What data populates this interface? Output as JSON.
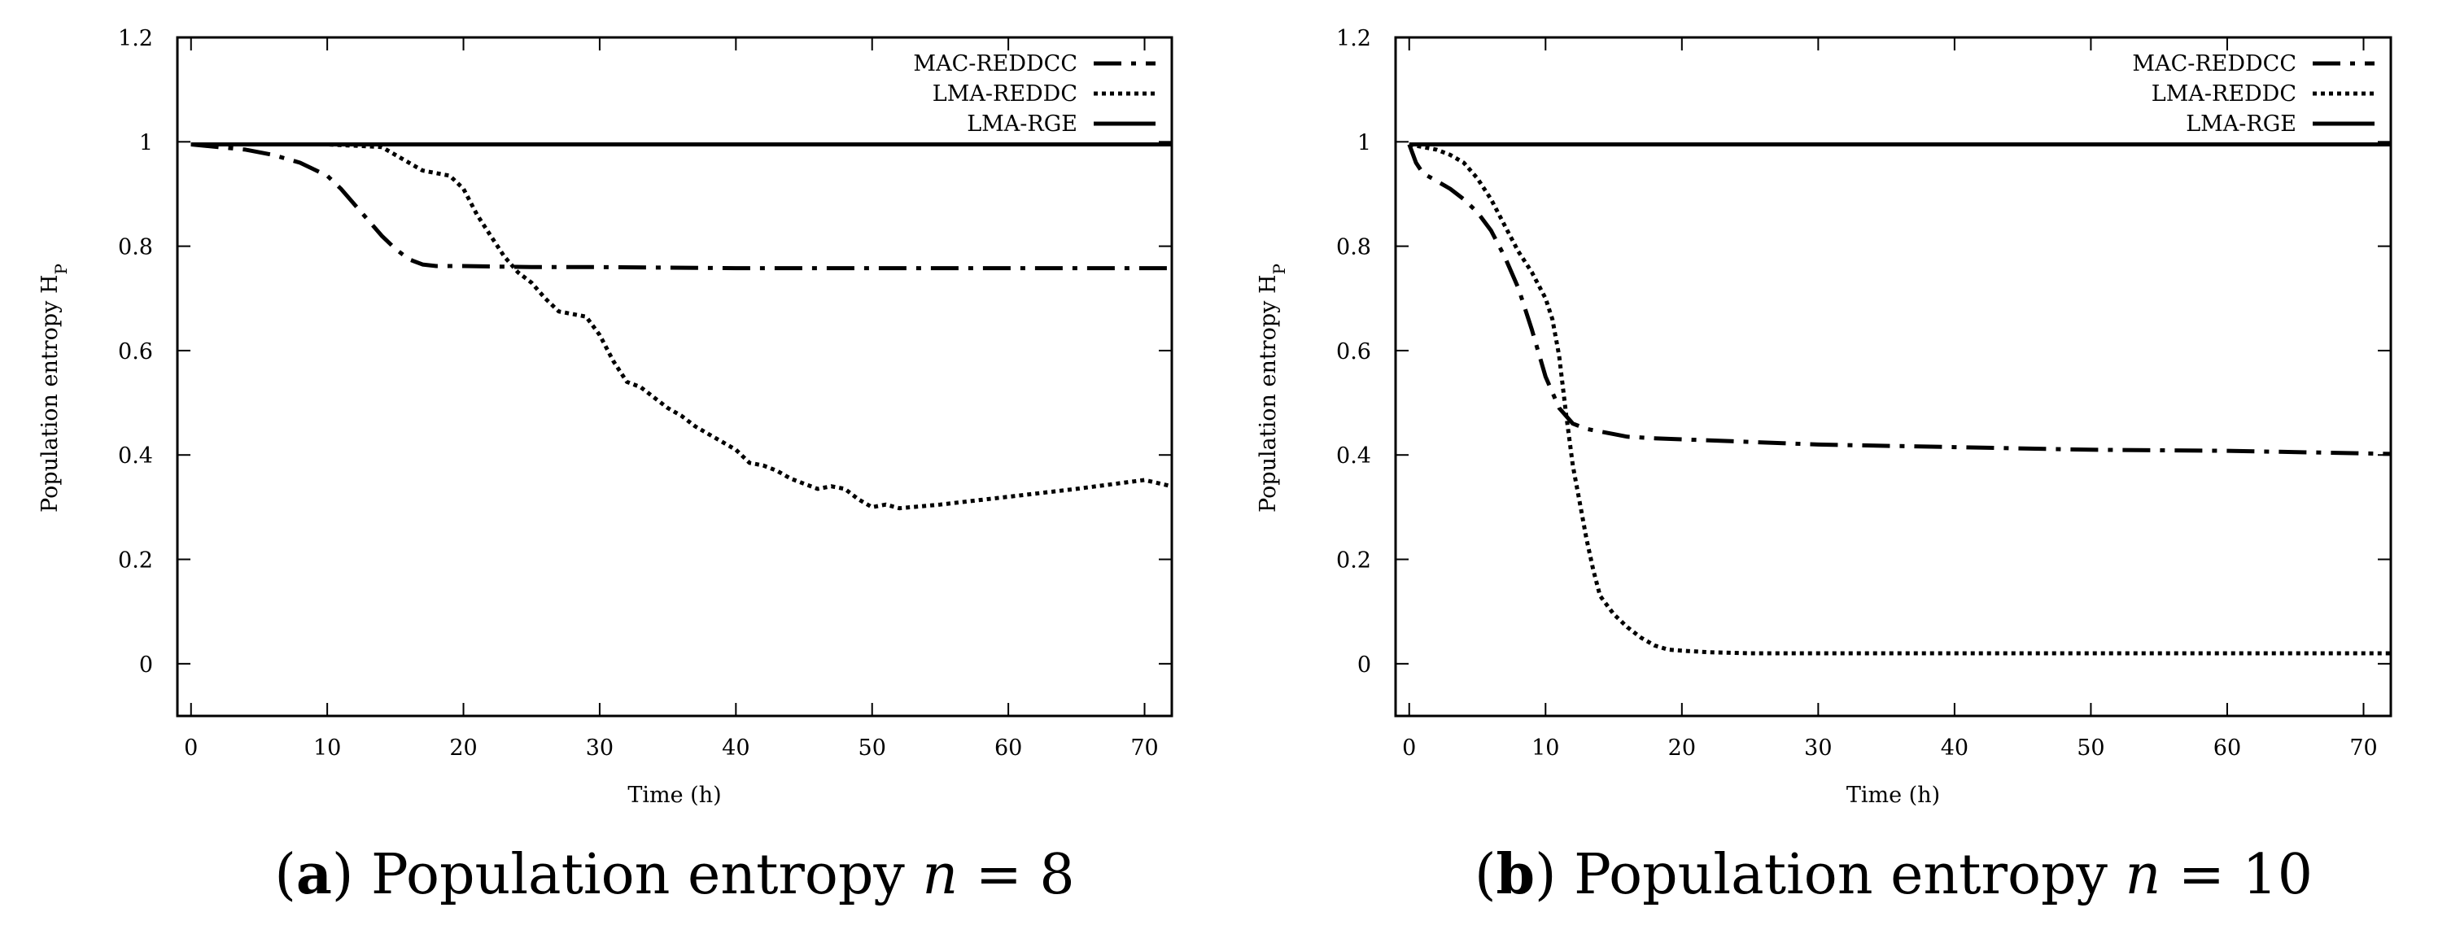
{
  "chart_data": [
    {
      "type": "line",
      "caption": {
        "letter": "a",
        "text": "Population entropy",
        "var": "n",
        "eq": " = 8"
      },
      "xlabel": "Time (h)",
      "ylabel": "Population entropy H",
      "ylabel_sub": "P",
      "xlim": [
        -1,
        72
      ],
      "ylim": [
        -0.1,
        1.2
      ],
      "xticks": [
        0,
        10,
        20,
        30,
        40,
        50,
        60,
        70
      ],
      "yticks": [
        0,
        0.2,
        0.4,
        0.6,
        0.8,
        1,
        1.2
      ],
      "legend_position": "top-right",
      "series": [
        {
          "name": "MAC-REDDCC",
          "style": "dashdot",
          "x": [
            0,
            2,
            4,
            6,
            8,
            10,
            11,
            12,
            13,
            14,
            15,
            16,
            17,
            18,
            20,
            25,
            30,
            40,
            50,
            60,
            72
          ],
          "y": [
            0.995,
            0.99,
            0.985,
            0.975,
            0.96,
            0.935,
            0.91,
            0.88,
            0.85,
            0.82,
            0.795,
            0.775,
            0.765,
            0.762,
            0.762,
            0.76,
            0.76,
            0.758,
            0.758,
            0.758,
            0.758
          ]
        },
        {
          "name": "LMA-REDDC",
          "style": "dotted",
          "x": [
            0,
            5,
            10,
            14,
            15,
            16,
            17,
            18,
            19,
            20,
            21,
            22,
            23,
            24,
            25,
            26,
            27,
            28,
            29,
            30,
            31,
            32,
            33,
            34,
            35,
            36,
            37,
            38,
            39,
            40,
            41,
            42,
            43,
            44,
            45,
            46,
            47,
            48,
            49,
            50,
            51,
            52,
            55,
            60,
            65,
            70,
            72
          ],
          "y": [
            0.995,
            0.995,
            0.995,
            0.99,
            0.975,
            0.96,
            0.945,
            0.94,
            0.935,
            0.91,
            0.86,
            0.82,
            0.78,
            0.75,
            0.73,
            0.7,
            0.675,
            0.67,
            0.665,
            0.63,
            0.58,
            0.54,
            0.53,
            0.51,
            0.49,
            0.475,
            0.455,
            0.44,
            0.425,
            0.41,
            0.385,
            0.38,
            0.37,
            0.355,
            0.345,
            0.335,
            0.34,
            0.335,
            0.315,
            0.3,
            0.305,
            0.298,
            0.305,
            0.32,
            0.335,
            0.352,
            0.34
          ]
        },
        {
          "name": "LMA-RGE",
          "style": "solid",
          "x": [
            0,
            72
          ],
          "y": [
            0.995,
            0.995
          ]
        }
      ]
    },
    {
      "type": "line",
      "caption": {
        "letter": "b",
        "text": "Population entropy",
        "var": "n",
        "eq": " = 10"
      },
      "xlabel": "Time (h)",
      "ylabel": "Population entropy H",
      "ylabel_sub": "P",
      "xlim": [
        -1,
        72
      ],
      "ylim": [
        -0.1,
        1.2
      ],
      "xticks": [
        0,
        10,
        20,
        30,
        40,
        50,
        60,
        70
      ],
      "yticks": [
        0,
        0.2,
        0.4,
        0.6,
        0.8,
        1,
        1.2
      ],
      "legend_position": "top-right",
      "series": [
        {
          "name": "MAC-REDDCC",
          "style": "dashdot",
          "x": [
            0,
            0.5,
            1,
            2,
            3,
            4,
            5,
            6,
            7,
            8,
            9,
            10,
            11,
            12,
            13,
            14,
            15,
            16,
            18,
            20,
            25,
            30,
            40,
            50,
            60,
            72
          ],
          "y": [
            0.995,
            0.96,
            0.94,
            0.925,
            0.91,
            0.89,
            0.865,
            0.83,
            0.78,
            0.72,
            0.64,
            0.55,
            0.49,
            0.46,
            0.45,
            0.445,
            0.44,
            0.435,
            0.432,
            0.43,
            0.425,
            0.42,
            0.415,
            0.41,
            0.408,
            0.402
          ]
        },
        {
          "name": "LMA-REDDC",
          "style": "dotted",
          "x": [
            0,
            2,
            3,
            4,
            5,
            6,
            7,
            8,
            9,
            10,
            10.5,
            11,
            11.5,
            12,
            12.5,
            13,
            13.5,
            14,
            15,
            16,
            17,
            18,
            19,
            20,
            22,
            25,
            30,
            40,
            50,
            60,
            72
          ],
          "y": [
            0.995,
            0.985,
            0.975,
            0.96,
            0.93,
            0.89,
            0.84,
            0.79,
            0.75,
            0.7,
            0.66,
            0.59,
            0.48,
            0.38,
            0.31,
            0.24,
            0.18,
            0.13,
            0.095,
            0.07,
            0.05,
            0.035,
            0.027,
            0.025,
            0.022,
            0.02,
            0.02,
            0.02,
            0.02,
            0.02,
            0.02
          ]
        },
        {
          "name": "LMA-RGE",
          "style": "solid",
          "x": [
            0,
            72
          ],
          "y": [
            0.995,
            0.995
          ]
        }
      ]
    }
  ]
}
